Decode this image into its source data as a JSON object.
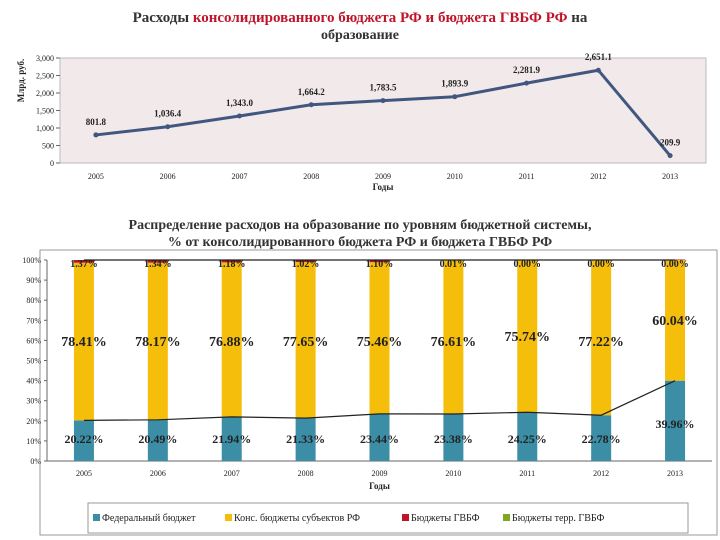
{
  "chart1": {
    "title_part1": "Расходы ",
    "title_highlight": "консолидированного бюджета РФ и бюджета ГВБФ РФ",
    "title_part2": " на",
    "title_line2": "образование",
    "ylabel": "Млрд. руб.",
    "xlabel": "Годы"
  },
  "chart2": {
    "title_line1": "Распределение расходов на образование по уровням бюджетной системы,",
    "title_line2": "% от консолидированного бюджета РФ и бюджета ГВБФ РФ",
    "xlabel": "Годы"
  },
  "colors": {
    "line": "#41577f",
    "federal": "#3b8ea5",
    "regional": "#f5be0b",
    "gvbf": "#c0142a",
    "territorial": "#7fa822",
    "plot_bg": "#f2e9ea",
    "title_highlight": "#c0142a"
  },
  "chart_data": [
    {
      "type": "line",
      "x": [
        "2005",
        "2006",
        "2007",
        "2008",
        "2009",
        "2010",
        "2011",
        "2012",
        "2013"
      ],
      "values": [
        801.8,
        1036.4,
        1343.0,
        1664.2,
        1783.5,
        1893.9,
        2281.9,
        2651.1,
        209.9
      ],
      "labels": [
        "801.8",
        "1,036.4",
        "1,343.0",
        "1,664.2",
        "1,783.5",
        "1,893.9",
        "2,281.9",
        "2,651.1",
        "209.9"
      ],
      "yticks": [
        "0",
        "500",
        "1,000",
        "1,500",
        "2,000",
        "2,500",
        "3,000"
      ],
      "ylim": [
        0,
        3000
      ],
      "ylabel": "Млрд. руб.",
      "xlabel": "Годы",
      "grid": false
    },
    {
      "type": "bar",
      "stacked": true,
      "categories": [
        "2005",
        "2006",
        "2007",
        "2008",
        "2009",
        "2010",
        "2011",
        "2012",
        "2013"
      ],
      "yticks": [
        "0%",
        "10%",
        "20%",
        "30%",
        "40%",
        "50%",
        "60%",
        "70%",
        "80%",
        "90%",
        "100%"
      ],
      "ylim": [
        0,
        100
      ],
      "xlabel": "Годы",
      "legend_position": "bottom",
      "series": [
        {
          "name": "Федеральный бюджет",
          "values": [
            20.22,
            20.49,
            21.94,
            21.33,
            23.44,
            23.38,
            24.25,
            22.78,
            39.96
          ],
          "labels": [
            "20.22%",
            "20.49%",
            "21.94%",
            "21.33%",
            "23.44%",
            "23.38%",
            "24.25%",
            "22.78%",
            "39.96%"
          ]
        },
        {
          "name": "Конс. бюджеты субъектов РФ",
          "values": [
            78.41,
            78.17,
            76.88,
            77.65,
            75.46,
            76.61,
            75.74,
            77.22,
            60.04
          ],
          "labels": [
            "78.41%",
            "78.17%",
            "76.88%",
            "77.65%",
            "75.46%",
            "76.61%",
            "75.74%",
            "77.22%",
            "60.04%"
          ]
        },
        {
          "name": "Бюджеты ГВБФ",
          "values": [
            1.37,
            1.34,
            1.18,
            1.02,
            1.1,
            0.01,
            0.0,
            0.0,
            0.0
          ],
          "labels": [
            "1.37%",
            "1.34%",
            "1.18%",
            "1.02%",
            "1.10%",
            "0.01%",
            "0.00%",
            "0.00%",
            "0.00%"
          ]
        },
        {
          "name": "Бюджеты терр. ГВБФ",
          "values": [
            0,
            0,
            0,
            0,
            0,
            0,
            0,
            0,
            0
          ],
          "labels": []
        }
      ]
    }
  ]
}
